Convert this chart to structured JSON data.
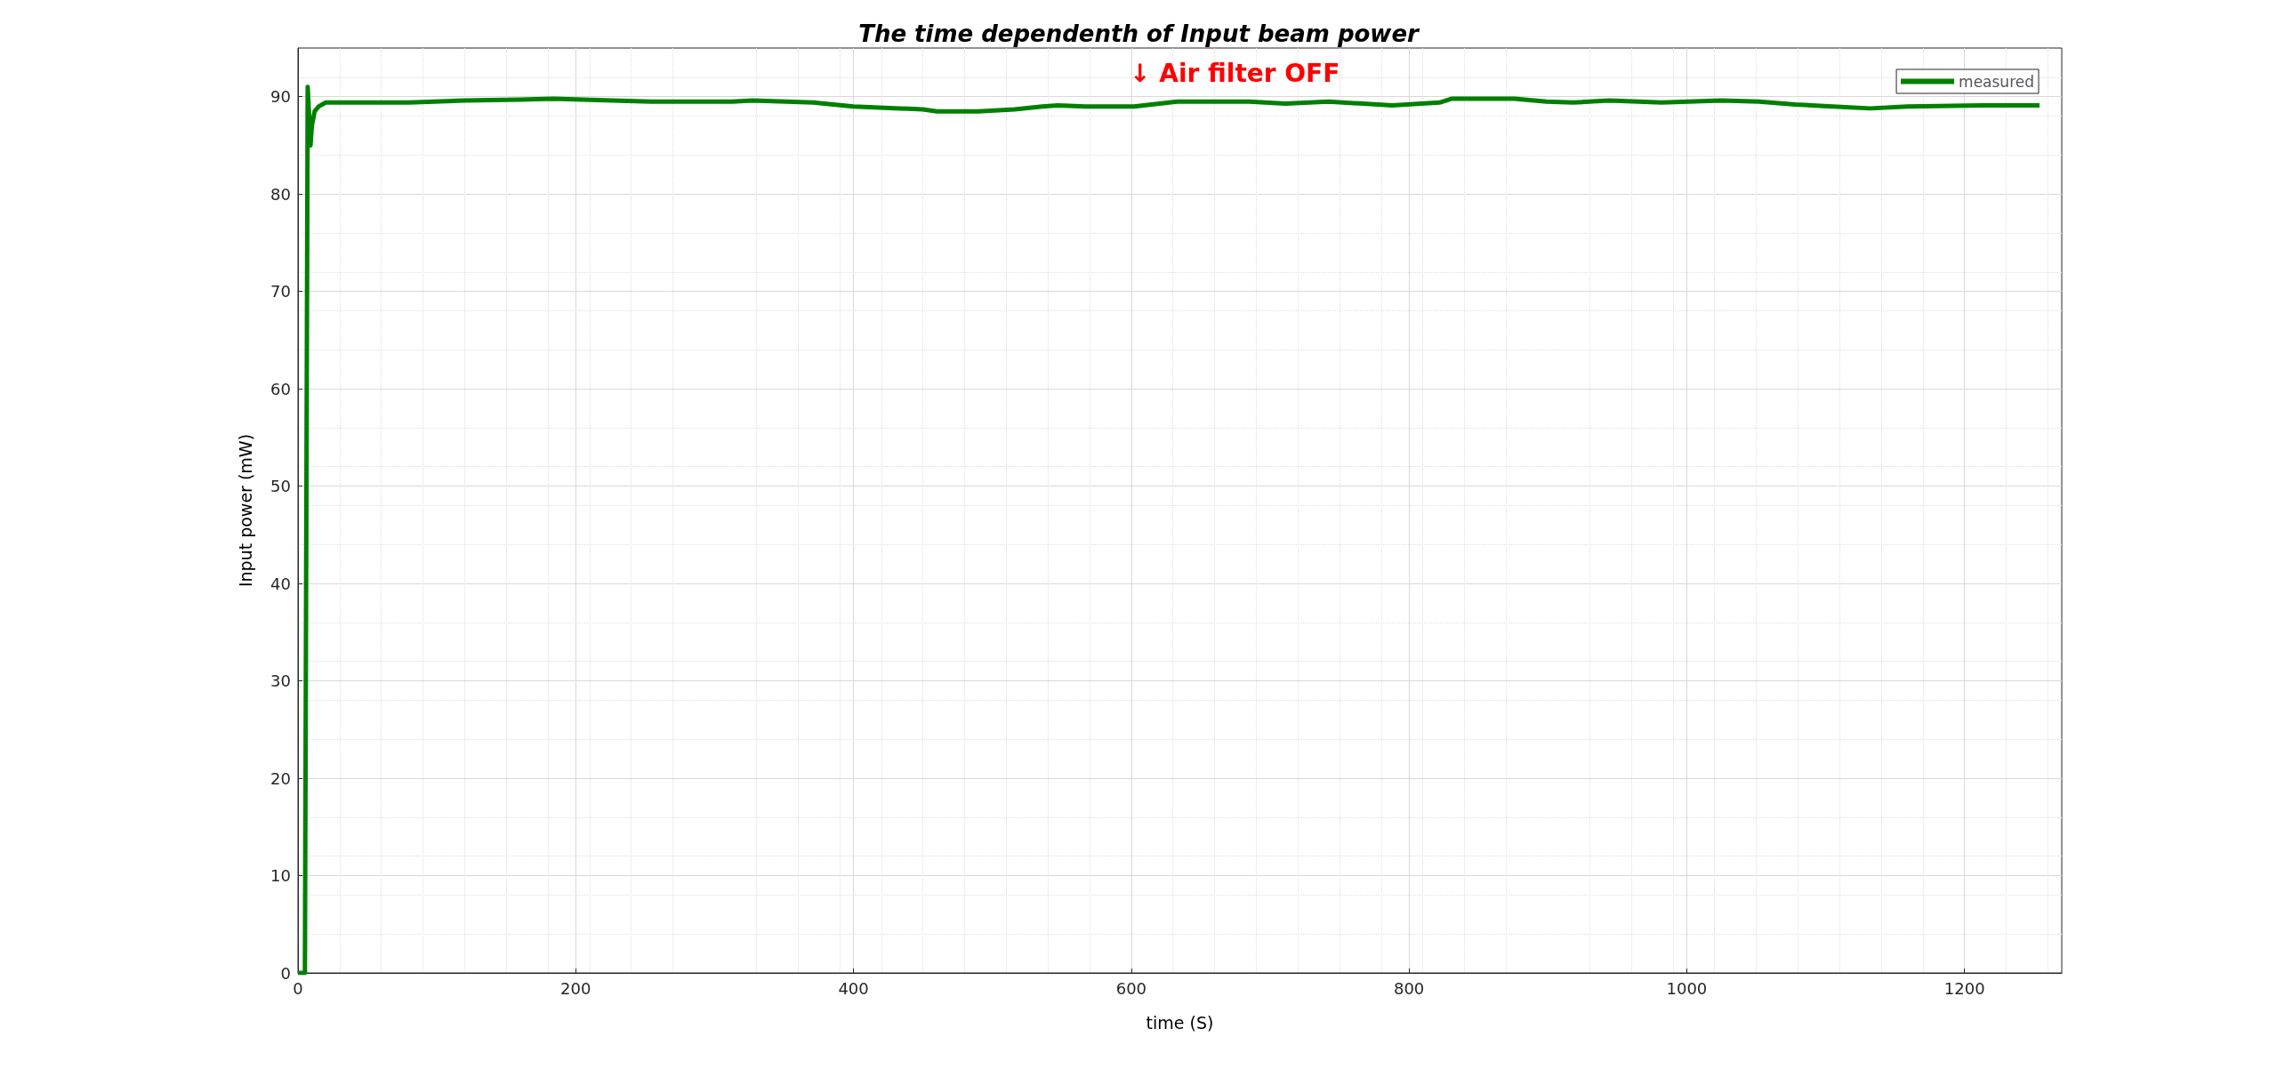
{
  "chart_data": {
    "type": "line",
    "title": "The time dependenth of Input beam power",
    "xlabel": "time (S)",
    "ylabel": "Input power (mW)",
    "xlim": [
      0,
      1270
    ],
    "xticks": [
      0,
      200,
      400,
      600,
      800,
      1000,
      1200
    ],
    "ylim": [
      0,
      95
    ],
    "yticks": [
      0,
      10,
      20,
      30,
      40,
      50,
      60,
      70,
      80,
      90
    ],
    "grid": true,
    "legend": "top right",
    "line_style": "solid",
    "marker": "none",
    "annotations": [
      "↓ Air filter OFF"
    ],
    "series": [
      {
        "name": "measured",
        "color": "#008000",
        "x": [
          0,
          5,
          7,
          8,
          9,
          10,
          12,
          15,
          20,
          40,
          80,
          120,
          160,
          184,
          205,
          254,
          313,
          327,
          371,
          400,
          450,
          460,
          490,
          516,
          536,
          547,
          567,
          602,
          633,
          685,
          711,
          742,
          788,
          822,
          831,
          876,
          899,
          918,
          944,
          982,
          1025,
          1052,
          1078,
          1105,
          1132,
          1159,
          1212,
          1254
        ],
        "values": [
          0,
          0,
          91,
          88,
          85,
          87,
          88.5,
          89,
          89.4,
          89.4,
          89.4,
          89.6,
          89.7,
          89.8,
          89.7,
          89.5,
          89.5,
          89.6,
          89.4,
          89,
          88.7,
          88.5,
          88.5,
          88.7,
          89,
          89.1,
          89,
          89,
          89.5,
          89.5,
          89.3,
          89.5,
          89.1,
          89.4,
          89.8,
          89.8,
          89.5,
          89.4,
          89.6,
          89.4,
          89.6,
          89.5,
          89.2,
          89,
          88.8,
          89,
          89.1,
          89.1
        ]
      }
    ]
  }
}
